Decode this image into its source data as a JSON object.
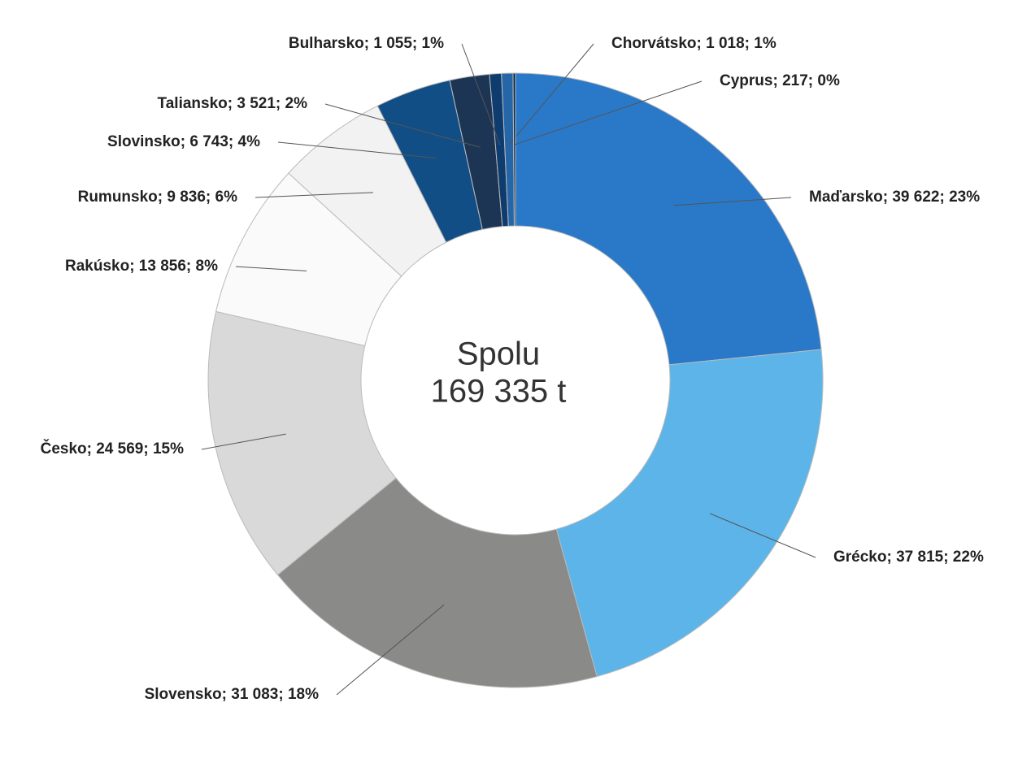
{
  "chart_data": {
    "type": "donut",
    "categories": [
      "Maďarsko",
      "Grécko",
      "Slovensko",
      "Česko",
      "Rakúsko",
      "Rumunsko",
      "Slovinsko",
      "Taliansko",
      "Bulharsko",
      "Chorvátsko",
      "Cyprus"
    ],
    "values": [
      39622,
      37815,
      31083,
      24569,
      13856,
      9836,
      6743,
      3521,
      1055,
      1018,
      217
    ],
    "value_labels": [
      "Maďarsko; 39 622; 23%",
      "Grécko; 37 815; 22%",
      "Slovensko; 31 083; 18%",
      "Česko; 24 569; 15%",
      "Rakúsko; 13 856; 8%",
      "Rumunsko; 9 836; 6%",
      "Slovinsko; 6 743; 4%",
      "Taliansko; 3 521; 2%",
      "Bulharsko; 1 055; 1%",
      "Chorvátsko; 1 018; 1%",
      "Cyprus; 217; 0%"
    ],
    "colors": [
      "#2a78c8",
      "#5cb4e8",
      "#8a8a88",
      "#d9d9d9",
      "#fafafa",
      "#f2f2f2",
      "#114e86",
      "#1c3554",
      "#0e3c6e",
      "#2566a8",
      "#0a2a4a"
    ],
    "center_text": [
      "Spolu",
      "169 335 t"
    ]
  }
}
